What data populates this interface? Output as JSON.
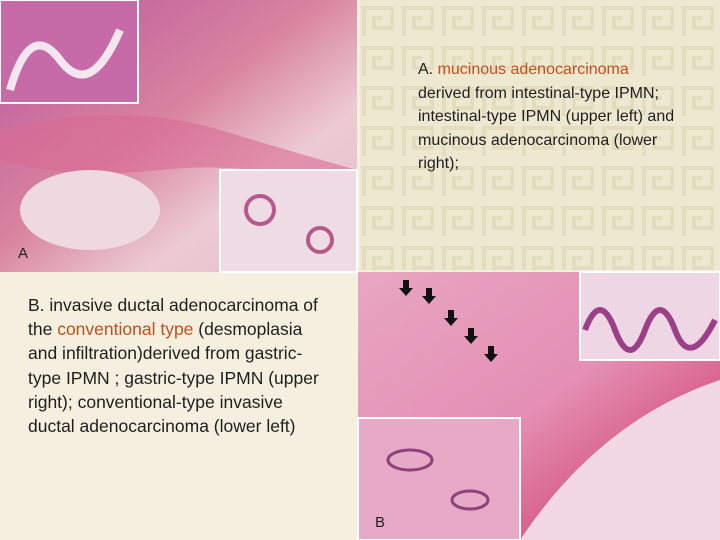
{
  "panel_a": {
    "image_label": "A",
    "caption_prefix": "A. ",
    "caption_highlight": "mucinous adenocarcinoma",
    "caption_rest": "derived from intestinal-type IPMN; intestinal-type IPMN (upper left) and mucinous adenocarcinoma (lower right);"
  },
  "panel_b": {
    "image_label": "B",
    "caption_prefix": "B. invasive ductal adenocarcinoma of the ",
    "caption_highlight": "conventional type",
    "caption_rest": " (desmoplasia and infiltration)derived from gastric-type IPMN ; gastric-type IPMN (upper right); conventional-type invasive ductal adenocarcinoma (lower left)"
  }
}
